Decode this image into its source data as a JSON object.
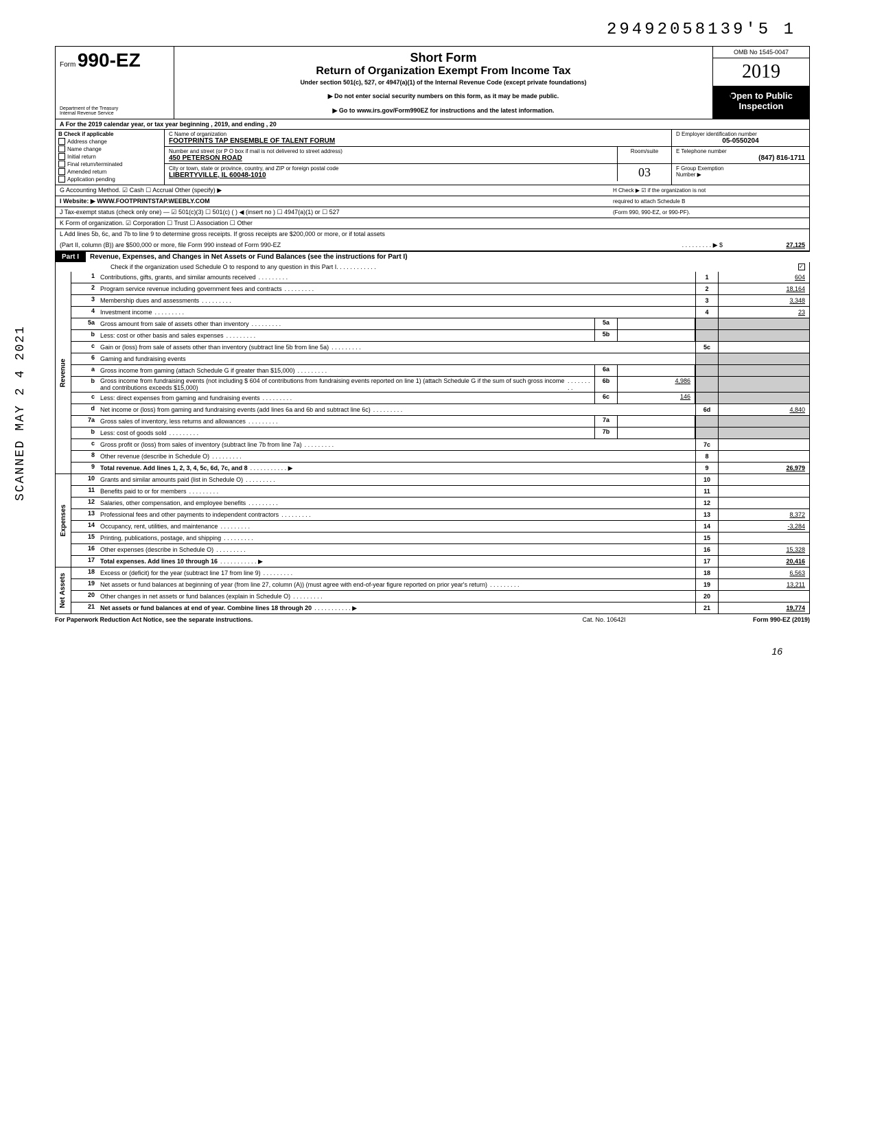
{
  "stamp_top": "29492058139'5  1",
  "form": {
    "prefix": "Form",
    "number": "990-EZ",
    "dept1": "Department of the Treasury",
    "dept2": "Internal Revenue Service",
    "short_form": "Short Form",
    "title": "Return of Organization Exempt From Income Tax",
    "under": "Under section 501(c), 527, or 4947(a)(1) of the Internal Revenue Code (except private foundations)",
    "note1": "▶ Do not enter social security numbers on this form, as it may be made public.",
    "note2": "▶ Go to www.irs.gov/Form990EZ for instructions and the latest information.",
    "omb": "OMB No 1545-0047",
    "year": "2019",
    "open1": "Open to Public",
    "open2": "Inspection"
  },
  "row_a": "A  For the 2019 calendar year, or tax year beginning                                                                        , 2019, and ending                                                      , 20",
  "section_b": {
    "header": "B  Check if applicable",
    "items": [
      "Address change",
      "Name change",
      "Initial return",
      "Final return/terminated",
      "Amended return",
      "Application pending"
    ]
  },
  "section_c": {
    "name_label": "C  Name of organization",
    "name": "FOOTPRINTS TAP ENSEMBLE OF TALENT FORUM",
    "addr_label": "Number and street (or P O  box if mail is not delivered to street address)",
    "addr": "450 PETERSON ROAD",
    "room_label": "Room/suite",
    "city_label": "City or town, state or province, country, and ZIP or foreign postal code",
    "city": "LIBERTYVILLE, IL  60048-1010"
  },
  "section_d": {
    "d_label": "D Employer identification number",
    "d_val": "05-0550204",
    "e_label": "E Telephone number",
    "e_val": "(847) 816-1711",
    "f_label": "F Group Exemption",
    "f_label2": "Number ▶"
  },
  "g_row": "G  Accounting Method.      ☑ Cash      ☐ Accrual      Other (specify) ▶",
  "h_row": "H  Check ▶ ☑ if the organization is not",
  "h_row2": "required to attach Schedule B",
  "h_row3": "(Form 990, 990-EZ, or 990-PF).",
  "i_row": "I   Website: ▶      WWW.FOOTPRINTSTAP.WEEBLY.COM",
  "j_row": "J  Tax-exempt status (check only one) — ☑ 501(c)(3)   ☐ 501(c) (          ) ◀ (insert no )  ☐ 4947(a)(1) or   ☐ 527",
  "k_row": "K  Form of organization.   ☑ Corporation      ☐ Trust             ☐ Association      ☐ Other",
  "l_row1": "L  Add lines 5b, 6c, and 7b to line 9 to determine gross receipts. If gross receipts are $200,000 or more, or if total assets",
  "l_row2": "(Part II, column (B)) are $500,000 or more, file Form 990 instead of Form 990-EZ",
  "l_val": "27,125",
  "part1": {
    "label": "Part I",
    "title": "Revenue, Expenses, and Changes in Net Assets or Fund Balances (see the instructions for Part I)",
    "sched_o": "Check if the organization used Schedule O to respond to any question in this Part I"
  },
  "revenue_lines": [
    {
      "no": "1",
      "desc": "Contributions, gifts, grants, and similar amounts received",
      "box": "1",
      "val": "604"
    },
    {
      "no": "2",
      "desc": "Program service revenue including government fees and contracts",
      "box": "2",
      "val": "18,164"
    },
    {
      "no": "3",
      "desc": "Membership dues and assessments",
      "box": "3",
      "val": "3,348"
    },
    {
      "no": "4",
      "desc": "Investment income",
      "box": "4",
      "val": "23"
    },
    {
      "no": "5a",
      "desc": "Gross amount from sale of assets other than inventory",
      "sub": "5a",
      "subval": ""
    },
    {
      "no": "b",
      "desc": "Less: cost or other basis and sales expenses",
      "sub": "5b",
      "subval": ""
    },
    {
      "no": "c",
      "desc": "Gain or (loss) from sale of assets other than inventory (subtract line 5b from line 5a)",
      "box": "5c",
      "val": ""
    },
    {
      "no": "6",
      "desc": "Gaming and fundraising events"
    },
    {
      "no": "a",
      "desc": "Gross income from gaming (attach Schedule G if greater than $15,000)",
      "sub": "6a",
      "subval": ""
    },
    {
      "no": "b",
      "desc": "Gross income from fundraising events (not including  $            604 of contributions from fundraising events reported on line 1) (attach Schedule G if the sum of such gross income and contributions exceeds $15,000)",
      "sub": "6b",
      "subval": "4,986"
    },
    {
      "no": "c",
      "desc": "Less: direct expenses from gaming and fundraising events",
      "sub": "6c",
      "subval": "146"
    },
    {
      "no": "d",
      "desc": "Net income or (loss) from gaming and fundraising events (add lines 6a and 6b and subtract line 6c)",
      "box": "6d",
      "val": "4,840"
    },
    {
      "no": "7a",
      "desc": "Gross sales of inventory, less returns and allowances",
      "sub": "7a",
      "subval": ""
    },
    {
      "no": "b",
      "desc": "Less: cost of goods sold",
      "sub": "7b",
      "subval": ""
    },
    {
      "no": "c",
      "desc": "Gross profit or (loss) from sales of inventory (subtract line 7b from line 7a)",
      "box": "7c",
      "val": ""
    },
    {
      "no": "8",
      "desc": "Other revenue (describe in Schedule O)",
      "box": "8",
      "val": ""
    },
    {
      "no": "9",
      "desc": "Total revenue. Add lines 1, 2, 3, 4, 5c, 6d, 7c, and 8",
      "box": "9",
      "val": "26,979",
      "bold": true,
      "arrow": true
    }
  ],
  "expense_lines": [
    {
      "no": "10",
      "desc": "Grants and similar amounts paid (list in Schedule O)",
      "box": "10",
      "val": ""
    },
    {
      "no": "11",
      "desc": "Benefits paid to or for members",
      "box": "11",
      "val": ""
    },
    {
      "no": "12",
      "desc": "Salaries, other compensation, and employee benefits",
      "box": "12",
      "val": ""
    },
    {
      "no": "13",
      "desc": "Professional fees and other payments to independent contractors",
      "box": "13",
      "val": "8,372"
    },
    {
      "no": "14",
      "desc": "Occupancy, rent, utilities, and maintenance",
      "box": "14",
      "val": "-3,284"
    },
    {
      "no": "15",
      "desc": "Printing, publications, postage, and shipping",
      "box": "15",
      "val": ""
    },
    {
      "no": "16",
      "desc": "Other expenses (describe in Schedule O)",
      "box": "16",
      "val": "15,328"
    },
    {
      "no": "17",
      "desc": "Total expenses. Add lines 10 through 16",
      "box": "17",
      "val": "20,416",
      "bold": true,
      "arrow": true
    }
  ],
  "netasset_lines": [
    {
      "no": "18",
      "desc": "Excess or (deficit) for the year (subtract line 17 from line 9)",
      "box": "18",
      "val": "6,563"
    },
    {
      "no": "19",
      "desc": "Net assets or fund balances at beginning of year (from line 27, column (A)) (must agree with end-of-year figure reported on prior year's return)",
      "box": "19",
      "val": "13,211"
    },
    {
      "no": "20",
      "desc": "Other changes in net assets or fund balances (explain in Schedule O)",
      "box": "20",
      "val": ""
    },
    {
      "no": "21",
      "desc": "Net assets or fund balances at end of year. Combine lines 18 through 20",
      "box": "21",
      "val": "19,774",
      "bold": true,
      "arrow": true
    }
  ],
  "footer": {
    "left": "For Paperwork Reduction Act Notice, see the separate instructions.",
    "mid": "Cat. No. 10642I",
    "right": "Form 990-EZ (2019)"
  },
  "scanned": "SCANNED MAY 2 4 2021",
  "page_num": "16",
  "hand_sig": "Q|)"
}
